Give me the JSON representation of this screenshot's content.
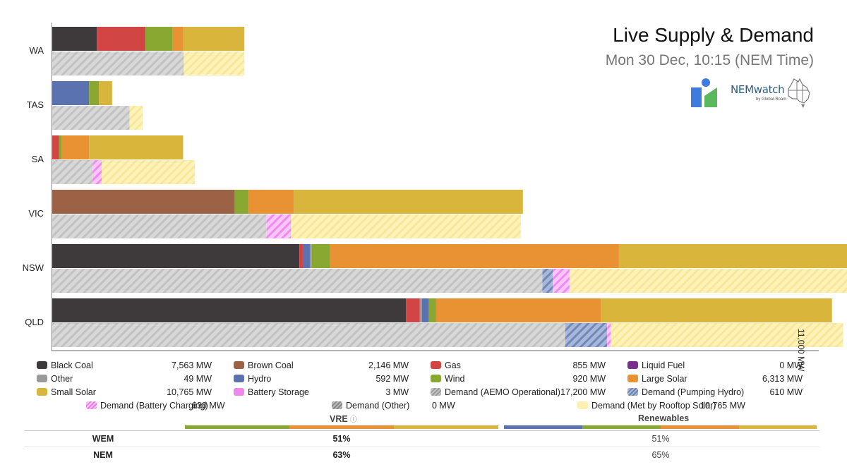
{
  "header": {
    "title": "Live Supply & Demand",
    "subtitle": "Mon 30 Dec, 10:15 (NEM Time)",
    "brand": "NEMwatch",
    "brand_sub": "by Global-Roam"
  },
  "scale_label": "11,000 MW",
  "colors": {
    "black_coal": "#3e3a3c",
    "brown_coal": "#9b6246",
    "gas": "#d24545",
    "liquid_fuel": "#7b2f8c",
    "other": "#9a9a9a",
    "hydro": "#5b72b0",
    "wind": "#88a832",
    "large_solar": "#e99233",
    "small_solar": "#d9b63b",
    "battery_storage": "#ee88ee"
  },
  "chart_data": {
    "type": "bar",
    "orientation": "horizontal-stacked",
    "scale_max_mw": 11000,
    "title": "Live Supply & Demand",
    "regions": [
      {
        "name": "WA",
        "supply": [
          {
            "fuel": "black_coal",
            "mw": 640
          },
          {
            "fuel": "gas",
            "mw": 700
          },
          {
            "fuel": "wind",
            "mw": 390
          },
          {
            "fuel": "large_solar",
            "mw": 150
          },
          {
            "fuel": "small_solar",
            "mw": 880
          }
        ],
        "demand": [
          {
            "kind": "operational",
            "mw": 1890
          },
          {
            "kind": "rooftop",
            "mw": 870
          }
        ]
      },
      {
        "name": "TAS",
        "supply": [
          {
            "fuel": "hydro",
            "mw": 530
          },
          {
            "fuel": "wind",
            "mw": 140
          },
          {
            "fuel": "small_solar",
            "mw": 190
          }
        ],
        "demand": [
          {
            "kind": "operational",
            "mw": 1110
          },
          {
            "kind": "rooftop",
            "mw": 190
          }
        ]
      },
      {
        "name": "SA",
        "supply": [
          {
            "fuel": "gas",
            "mw": 100
          },
          {
            "fuel": "wind",
            "mw": 40
          },
          {
            "fuel": "large_solar",
            "mw": 390
          },
          {
            "fuel": "small_solar",
            "mw": 1350
          }
        ],
        "demand": [
          {
            "kind": "operational",
            "mw": 580
          },
          {
            "kind": "battery_charging",
            "mw": 130
          },
          {
            "kind": "rooftop",
            "mw": 1340
          }
        ]
      },
      {
        "name": "VIC",
        "supply": [
          {
            "fuel": "brown_coal",
            "mw": 2620
          },
          {
            "fuel": "wind",
            "mw": 200
          },
          {
            "fuel": "large_solar",
            "mw": 650
          },
          {
            "fuel": "small_solar",
            "mw": 3290
          }
        ],
        "demand": [
          {
            "kind": "operational",
            "mw": 3080
          },
          {
            "kind": "battery_charging",
            "mw": 350
          },
          {
            "kind": "rooftop",
            "mw": 3300
          }
        ]
      },
      {
        "name": "NSW",
        "supply": [
          {
            "fuel": "black_coal",
            "mw": 3550
          },
          {
            "fuel": "gas",
            "mw": 60
          },
          {
            "fuel": "hydro",
            "mw": 90
          },
          {
            "fuel": "other",
            "mw": 30
          },
          {
            "fuel": "wind",
            "mw": 260
          },
          {
            "fuel": "large_solar",
            "mw": 4150
          },
          {
            "fuel": "small_solar",
            "mw": 4170
          }
        ],
        "demand": [
          {
            "kind": "operational",
            "mw": 7040
          },
          {
            "kind": "pumping_hydro",
            "mw": 150
          },
          {
            "kind": "battery_charging",
            "mw": 240
          },
          {
            "kind": "rooftop",
            "mw": 4170
          }
        ]
      },
      {
        "name": "QLD",
        "supply": [
          {
            "fuel": "black_coal",
            "mw": 5080
          },
          {
            "fuel": "gas",
            "mw": 200
          },
          {
            "fuel": "other",
            "mw": 30
          },
          {
            "fuel": "hydro",
            "mw": 100
          },
          {
            "fuel": "wind",
            "mw": 100
          },
          {
            "fuel": "large_solar",
            "mw": 2370
          },
          {
            "fuel": "small_solar",
            "mw": 3320
          }
        ],
        "demand": [
          {
            "kind": "operational",
            "mw": 7370
          },
          {
            "kind": "pumping_hydro",
            "mw": 600
          },
          {
            "kind": "battery_charging",
            "mw": 50
          },
          {
            "kind": "rooftop",
            "mw": 3340
          }
        ]
      }
    ]
  },
  "legend": [
    {
      "id": "black-coal",
      "label": "Black Coal",
      "value": "7,563 MW",
      "swatch": "#3e3a3c"
    },
    {
      "id": "brown-coal",
      "label": "Brown Coal",
      "value": "2,146 MW",
      "swatch": "#9b6246"
    },
    {
      "id": "gas",
      "label": "Gas",
      "value": "855 MW",
      "swatch": "#d24545"
    },
    {
      "id": "liquid-fuel",
      "label": "Liquid Fuel",
      "value": "0 MW",
      "swatch": "#7b2f8c"
    },
    {
      "id": "other",
      "label": "Other",
      "value": "49 MW",
      "swatch": "#9a9a9a"
    },
    {
      "id": "hydro",
      "label": "Hydro",
      "value": "592 MW",
      "swatch": "#5b72b0"
    },
    {
      "id": "wind",
      "label": "Wind",
      "value": "920 MW",
      "swatch": "#88a832"
    },
    {
      "id": "large-solar",
      "label": "Large Solar",
      "value": "6,313 MW",
      "swatch": "#e99233"
    },
    {
      "id": "small-solar",
      "label": "Small Solar",
      "value": "10,765 MW",
      "swatch": "#d9b63b"
    },
    {
      "id": "battery-storage",
      "label": "Battery Storage",
      "value": "3 MW",
      "swatch": "#ee88ee"
    },
    {
      "id": "demand-operational",
      "label": "Demand (AEMO Operational)",
      "value": "17,200 MW",
      "swatch": "#d4d4d4"
    },
    {
      "id": "demand-pumping-hydro",
      "label": "Demand (Pumping Hydro)",
      "value": "610 MW",
      "swatch": "hatch-blue"
    },
    {
      "id": "demand-battery-charging",
      "label": "Demand (Battery Charging)",
      "value": "630 MW",
      "swatch": "hatch-pink"
    },
    {
      "id": "demand-other",
      "label": "Demand (Other)",
      "value": "0 MW",
      "swatch": "hatch-grey"
    },
    {
      "id": "demand-rooftop",
      "label": "Demand (Met by Rooftop Solar)",
      "value": "10,765 MW",
      "swatch": "#fdf0b0"
    }
  ],
  "summary": {
    "vre_header": "VRE",
    "renewables_header": "Renewables",
    "rows": [
      {
        "name": "WEM",
        "vre": "51%",
        "renewables": "51%"
      },
      {
        "name": "NEM",
        "vre": "63%",
        "renewables": "65%"
      }
    ]
  }
}
